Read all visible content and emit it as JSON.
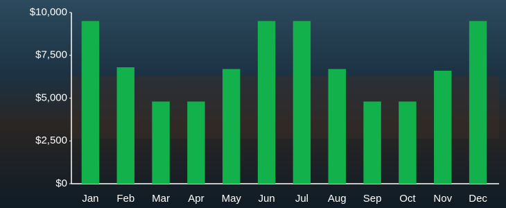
{
  "chart_data": {
    "type": "bar",
    "categories": [
      "Jan",
      "Feb",
      "Mar",
      "Apr",
      "May",
      "Jun",
      "Jul",
      "Aug",
      "Sep",
      "Oct",
      "Nov",
      "Dec"
    ],
    "values": [
      9500,
      6800,
      4800,
      4800,
      6700,
      9500,
      9500,
      6700,
      4800,
      4800,
      6600,
      9500
    ],
    "color": "#13b14b",
    "ylim": [
      0,
      10000
    ],
    "yticks": [
      {
        "value": 0,
        "label": "$0"
      },
      {
        "value": 2500,
        "label": "$2,500"
      },
      {
        "value": 5000,
        "label": "$5,000"
      },
      {
        "value": 7500,
        "label": "$7,500"
      },
      {
        "value": 10000,
        "label": "$10,000"
      }
    ],
    "grid": false
  }
}
